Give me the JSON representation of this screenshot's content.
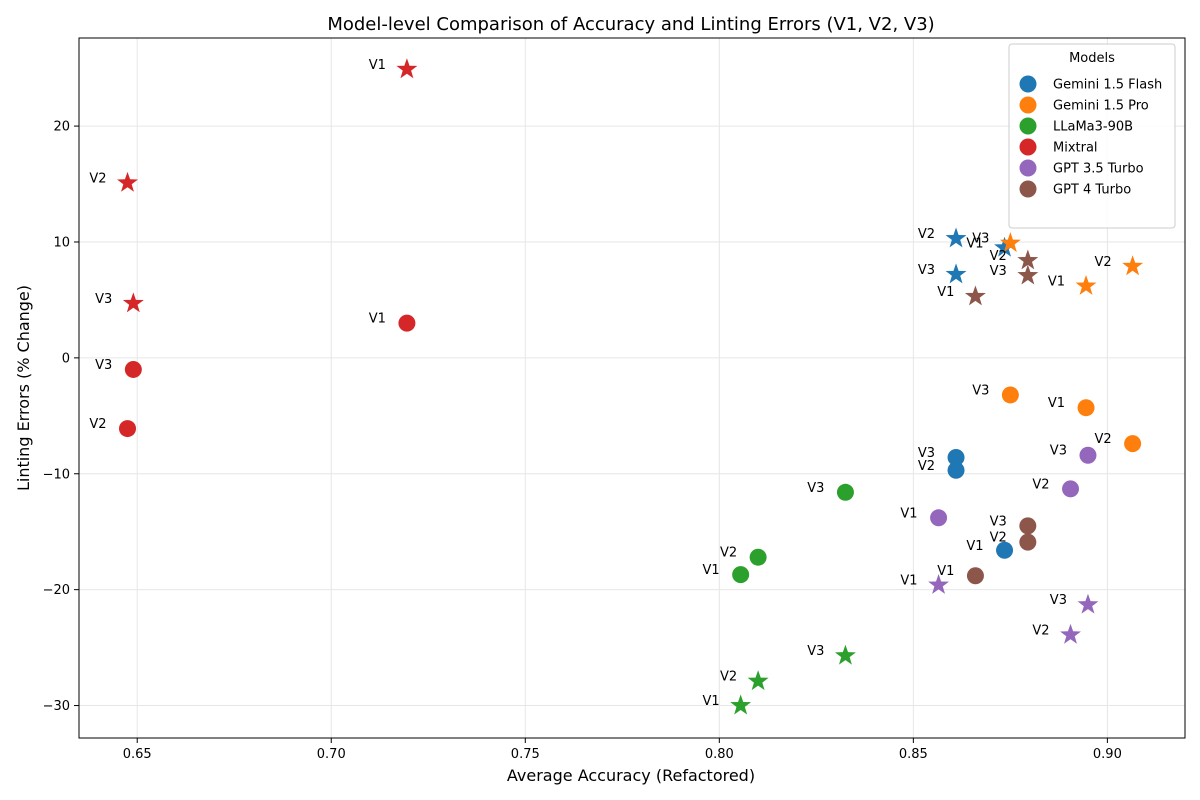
{
  "chart_data": {
    "type": "scatter",
    "title": "Model-level Comparison of Accuracy and Linting Errors (V1, V2, V3)",
    "xlabel": "Average Accuracy (Refactored)",
    "ylabel": "Linting Errors (% Change)",
    "xlim": [
      0.635,
      0.92
    ],
    "ylim": [
      -32.8,
      27.6
    ],
    "xticks": [
      0.65,
      0.7,
      0.75,
      0.8,
      0.85,
      0.9
    ],
    "xtick_labels": [
      "0.65",
      "0.70",
      "0.75",
      "0.80",
      "0.85",
      "0.90"
    ],
    "yticks": [
      -30,
      -20,
      -10,
      0,
      10,
      20
    ],
    "ytick_labels": [
      "−30",
      "−20",
      "−10",
      "0",
      "10",
      "20"
    ],
    "grid": true,
    "legend": {
      "title": "Models",
      "position": "top-right"
    },
    "marker_meaning": {
      "circle": "dot",
      "star": "star"
    },
    "series": [
      {
        "name": "Gemini 1.5 Flash",
        "color": "#1f77b4",
        "points": [
          {
            "label": "V1",
            "x": 0.8735,
            "y": -16.6,
            "marker": "circle"
          },
          {
            "label": "V2",
            "x": 0.861,
            "y": -9.7,
            "marker": "circle"
          },
          {
            "label": "V3",
            "x": 0.861,
            "y": -8.6,
            "marker": "circle"
          },
          {
            "label": "V1",
            "x": 0.8735,
            "y": 9.5,
            "marker": "star"
          },
          {
            "label": "V2",
            "x": 0.861,
            "y": 10.3,
            "marker": "star"
          },
          {
            "label": "V3",
            "x": 0.861,
            "y": 7.2,
            "marker": "star"
          }
        ]
      },
      {
        "name": "Gemini 1.5 Pro",
        "color": "#ff7f0e",
        "points": [
          {
            "label": "V1",
            "x": 0.8945,
            "y": -4.3,
            "marker": "circle"
          },
          {
            "label": "V2",
            "x": 0.9065,
            "y": -7.4,
            "marker": "circle"
          },
          {
            "label": "V3",
            "x": 0.875,
            "y": -3.2,
            "marker": "circle"
          },
          {
            "label": "V1",
            "x": 0.8945,
            "y": 6.2,
            "marker": "star"
          },
          {
            "label": "V2",
            "x": 0.9065,
            "y": 7.9,
            "marker": "star"
          },
          {
            "label": "V3",
            "x": 0.875,
            "y": 9.9,
            "marker": "star"
          }
        ]
      },
      {
        "name": "LLaMa3-90B",
        "color": "#2ca02c",
        "points": [
          {
            "label": "V1",
            "x": 0.8055,
            "y": -18.7,
            "marker": "circle"
          },
          {
            "label": "V2",
            "x": 0.81,
            "y": -17.2,
            "marker": "circle"
          },
          {
            "label": "V3",
            "x": 0.8325,
            "y": -11.6,
            "marker": "circle"
          },
          {
            "label": "V1",
            "x": 0.8055,
            "y": -30.0,
            "marker": "star"
          },
          {
            "label": "V2",
            "x": 0.81,
            "y": -27.9,
            "marker": "star"
          },
          {
            "label": "V3",
            "x": 0.8325,
            "y": -25.7,
            "marker": "star"
          }
        ]
      },
      {
        "name": "Mixtral",
        "color": "#d62728",
        "points": [
          {
            "label": "V1",
            "x": 0.7195,
            "y": 3.0,
            "marker": "circle"
          },
          {
            "label": "V2",
            "x": 0.6475,
            "y": -6.1,
            "marker": "circle"
          },
          {
            "label": "V3",
            "x": 0.649,
            "y": -1.0,
            "marker": "circle"
          },
          {
            "label": "V1",
            "x": 0.7195,
            "y": 24.9,
            "marker": "star"
          },
          {
            "label": "V2",
            "x": 0.6475,
            "y": 15.1,
            "marker": "star"
          },
          {
            "label": "V3",
            "x": 0.649,
            "y": 4.7,
            "marker": "star"
          }
        ]
      },
      {
        "name": "GPT 3.5 Turbo",
        "color": "#9467bd",
        "points": [
          {
            "label": "V1",
            "x": 0.8565,
            "y": -13.8,
            "marker": "circle"
          },
          {
            "label": "V2",
            "x": 0.8905,
            "y": -11.3,
            "marker": "circle"
          },
          {
            "label": "V3",
            "x": 0.895,
            "y": -8.4,
            "marker": "circle"
          },
          {
            "label": "V1",
            "x": 0.8565,
            "y": -19.6,
            "marker": "star"
          },
          {
            "label": "V2",
            "x": 0.8905,
            "y": -23.9,
            "marker": "star"
          },
          {
            "label": "V3",
            "x": 0.895,
            "y": -21.3,
            "marker": "star"
          }
        ]
      },
      {
        "name": "GPT 4 Turbo",
        "color": "#8c564b",
        "points": [
          {
            "label": "V1",
            "x": 0.866,
            "y": -18.8,
            "marker": "circle"
          },
          {
            "label": "V2",
            "x": 0.8795,
            "y": -15.9,
            "marker": "circle"
          },
          {
            "label": "V3",
            "x": 0.8795,
            "y": -14.5,
            "marker": "circle"
          },
          {
            "label": "V1",
            "x": 0.866,
            "y": 5.3,
            "marker": "star"
          },
          {
            "label": "V2",
            "x": 0.8795,
            "y": 8.4,
            "marker": "star"
          },
          {
            "label": "V3",
            "x": 0.8795,
            "y": 7.1,
            "marker": "star"
          }
        ]
      }
    ]
  }
}
